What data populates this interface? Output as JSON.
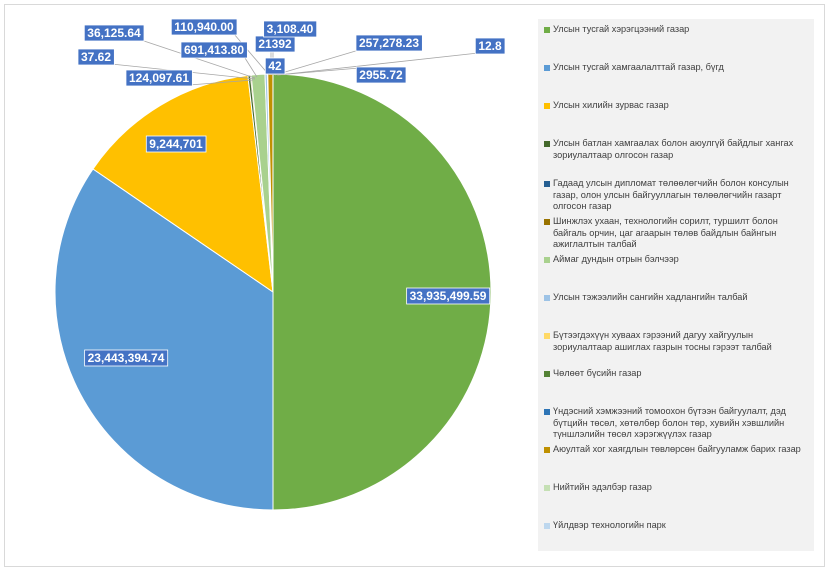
{
  "chart_data": {
    "type": "pie",
    "title": "",
    "series": [
      {
        "label": "Улсын тусгай хэрэгцээний газар",
        "value": 33935499.59,
        "data_label": "33,935,499.59",
        "color": "#70ad47"
      },
      {
        "label": "Улсын тусгай хамгаалалттай газар, бүгд",
        "value": 23443394.74,
        "data_label": "23,443,394.74",
        "color": "#5b9bd5"
      },
      {
        "label": "Улсын хилийн зурвас газар",
        "value": 9244701,
        "data_label": "9,244,701",
        "color": "#ffc000"
      },
      {
        "label": "Улсын батлан хамгаалах болон аюулгүй байдлыг хангах зориулалтаар олгосон газар",
        "value": 124097.61,
        "data_label": "124,097.61",
        "color": "#43682b"
      },
      {
        "label": "Гадаад улсын дипломат төлөөлөгчийн болон консулын газар, олон улсын байгууллагын төлөөлөгчийн газарт олгосон газар",
        "value": 37.62,
        "data_label": "37.62",
        "color": "#255e91"
      },
      {
        "label": "Шинжлэх ухаан, технологийн сорилт, туршилт болон байгаль орчин, цаг агаарын төлөв байдлын байнгын ажиглалтын талбай",
        "value": 36125.64,
        "data_label": "36,125.64",
        "color": "#997300"
      },
      {
        "label": "Аймаг дундын отрын бэлчээр",
        "value": 691413.8,
        "data_label": "691,413.80",
        "color": "#a9d18e"
      },
      {
        "label": "Улсын тэжээлийн сангийн хадлангийн талбай",
        "value": 110940.0,
        "data_label": "110,940.00",
        "color": "#9dc3e6"
      },
      {
        "label": "Бүтээгдэхүүн хуваах гэрээний дагуу хайгуулын зориулалтаар ашиглах газрын тосны гэрээт талбай",
        "value": 21392,
        "data_label": "21392",
        "color": "#ffd966"
      },
      {
        "label": "Чөлөөт бүсийн газар",
        "value": 42,
        "data_label": "42",
        "color": "#548235"
      },
      {
        "label": "Үндэсний хэмжээний томоохон бүтээн байгуулалт, дэд бүтцийн төсөл, хөтөлбөр болон төр, хувийн хэвшлийн түншлэлийн төсөл хэрэгжүүлэх газар",
        "value": 3108.4,
        "data_label": "3,108.40",
        "color": "#2e75b6"
      },
      {
        "label": "Аюултай хог хаягдлын төвлөрсөн байгууламж барих газар",
        "value": 257278.23,
        "data_label": "257,278.23",
        "color": "#bf9000"
      },
      {
        "label": "Нийтийн эдэлбэр газар",
        "value": 2955.72,
        "data_label": "2955.72",
        "color": "#c5e0b4"
      },
      {
        "label": "Үйлдвэр технологийн парк",
        "value": 12.8,
        "data_label": "12.8",
        "color": "#bdd7ee"
      }
    ],
    "legend_position": "right",
    "data_label_color": "#4472c4"
  }
}
